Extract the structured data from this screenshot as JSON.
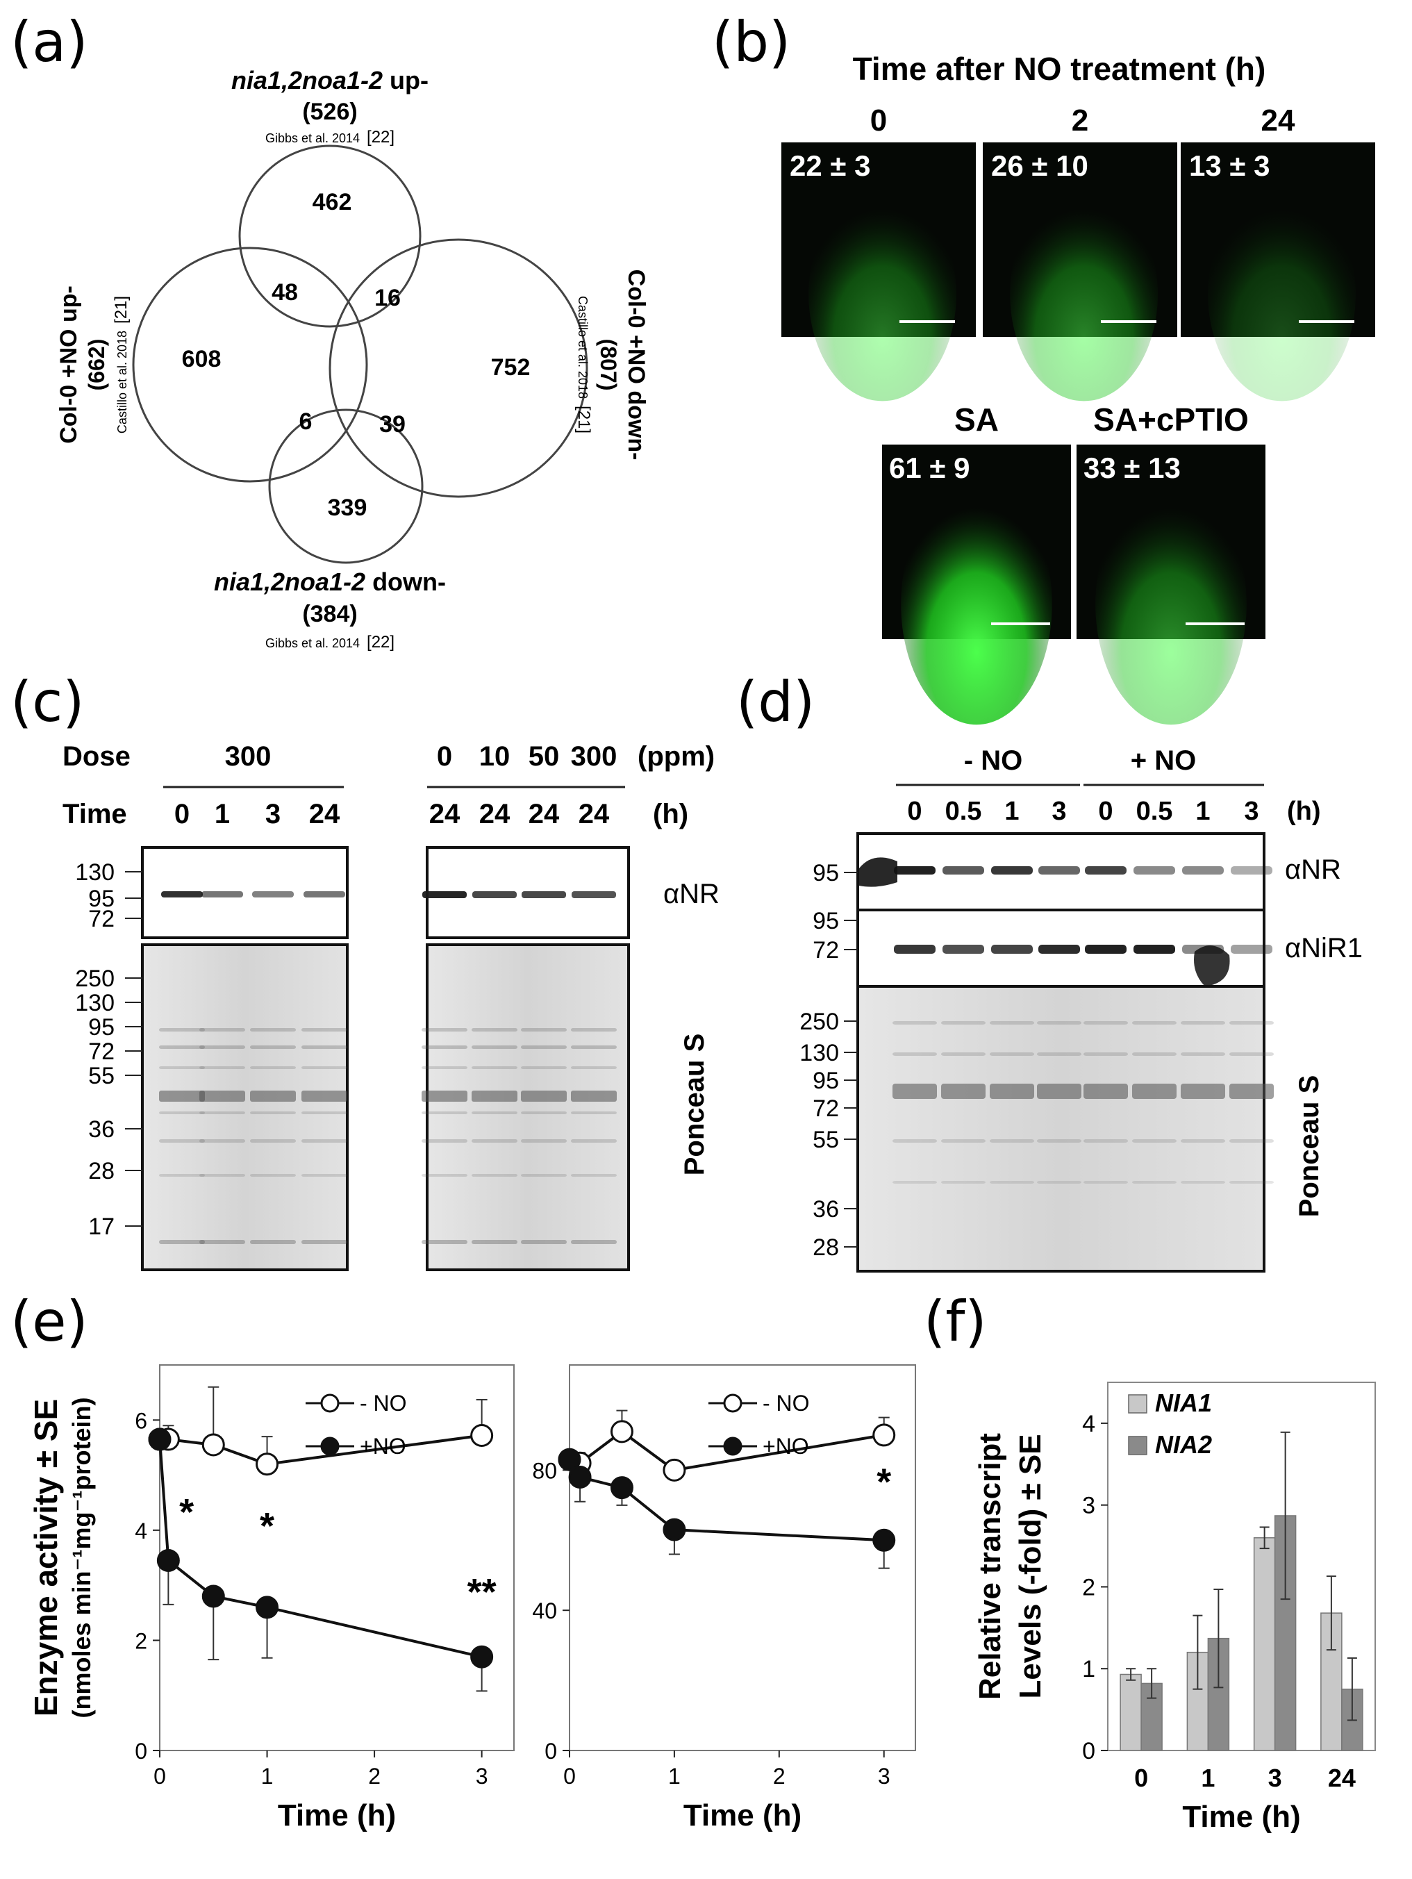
{
  "panels": {
    "a": {
      "letter": "(a)",
      "sets": [
        {
          "name_italic": "nia1,2noa1-2",
          "name_suffix": " up-",
          "count": "(526)",
          "citation": "Gibbs et al. 2014",
          "ref": "[22]"
        },
        {
          "name_italic": "nia1,2noa1-2",
          "name_suffix": " down-",
          "count": "(384)",
          "citation": "Gibbs et al. 2014",
          "ref": "[22]"
        },
        {
          "name": "Col-0 +NO up-",
          "count": "(662)",
          "citation": "Castillo et al. 2018",
          "ref": "[21]"
        },
        {
          "name": "Col-0 +NO down-",
          "count": "(807)",
          "citation": "Castillo et al. 2018",
          "ref": "[21]"
        }
      ],
      "region_values": {
        "top_only": "462",
        "left_only": "608",
        "right_only": "752",
        "bottom_only": "339",
        "top_left": "48",
        "top_right": "16",
        "left_bottom": "6",
        "right_bottom": "39"
      }
    },
    "b": {
      "letter": "(b)",
      "title": "Time after NO treatment (h)",
      "top_images": [
        {
          "label": "0",
          "value": "22 ± 3",
          "intensity": 0.45
        },
        {
          "label": "2",
          "value": "26 ± 10",
          "intensity": 0.5
        },
        {
          "label": "24",
          "value": "13 ± 3",
          "intensity": 0.28
        }
      ],
      "bottom_images": [
        {
          "label": "SA",
          "value": "61 ± 9",
          "intensity": 1.0
        },
        {
          "label": "SA+cPTIO",
          "value": "33 ± 13",
          "intensity": 0.55
        }
      ]
    },
    "c": {
      "letter": "(c)",
      "dose_label": "Dose",
      "time_label": "Time",
      "left_dose": "300",
      "left_times": [
        "0",
        "1",
        "3",
        "24"
      ],
      "right_doses": [
        "0",
        "10",
        "50",
        "300"
      ],
      "dose_unit": "(ppm)",
      "right_times": [
        "24",
        "24",
        "24",
        "24"
      ],
      "time_unit": "(h)",
      "nr_markers": [
        "130",
        "95",
        "72"
      ],
      "ponceau_markers": [
        "250",
        "130",
        "95",
        "72",
        "55",
        "36",
        "28",
        "17"
      ],
      "nr_label": "αNR",
      "ponceau_label": "Ponceau S"
    },
    "d": {
      "letter": "(d)",
      "groups": [
        "- NO",
        "+ NO"
      ],
      "times": [
        "0",
        "0.5",
        "1",
        "3",
        "0",
        "0.5",
        "1",
        "3"
      ],
      "time_unit": "(h)",
      "nr_markers": [
        "95"
      ],
      "nir_markers": [
        "95",
        "72"
      ],
      "ponceau_markers": [
        "250",
        "130",
        "95",
        "72",
        "55",
        "36",
        "28"
      ],
      "nr_label": "αNR",
      "nir_label": "αNiR1",
      "ponceau_label": "Ponceau S"
    },
    "e": {
      "letter": "(e)"
    },
    "f": {
      "letter": "(f)"
    }
  },
  "chart_data": [
    {
      "type": "line",
      "panel": "e-left",
      "xlabel": "Time (h)",
      "ylabel": "Enzyme activity ± SE",
      "ylabel2": "(nmoles min⁻¹mg⁻¹protein)",
      "xlim": [
        0,
        3.3
      ],
      "ylim": [
        0,
        7
      ],
      "xticks": [
        0,
        1,
        2,
        3
      ],
      "yticks": [
        0,
        2,
        4,
        6
      ],
      "series": [
        {
          "name": "- NO",
          "marker": "open",
          "x": [
            0,
            0.08,
            0.5,
            1,
            3
          ],
          "y": [
            5.65,
            5.65,
            5.55,
            5.2,
            5.72
          ],
          "err": [
            0.12,
            0.25,
            1.05,
            0.5,
            0.65
          ]
        },
        {
          "name": "+NO",
          "marker": "filled",
          "x": [
            0,
            0.08,
            0.5,
            1,
            3
          ],
          "y": [
            5.65,
            3.45,
            2.8,
            2.6,
            1.7
          ],
          "err": [
            0.1,
            0.8,
            1.15,
            0.92,
            0.62
          ]
        }
      ],
      "annotations": [
        {
          "text": "*",
          "x": 0.25,
          "y": 4.1
        },
        {
          "text": "*",
          "x": 1.0,
          "y": 3.85
        },
        {
          "text": "**",
          "x": 3.0,
          "y": 2.65
        }
      ]
    },
    {
      "type": "line",
      "panel": "e-right",
      "xlabel": "Time (h)",
      "xlim": [
        0,
        3.3
      ],
      "ylim": [
        0,
        110
      ],
      "xticks": [
        0,
        1,
        2,
        3
      ],
      "yticks": [
        0,
        40,
        80
      ],
      "series": [
        {
          "name": "- NO",
          "marker": "open",
          "x": [
            0,
            0.1,
            0.5,
            1,
            3
          ],
          "y": [
            83,
            82,
            91,
            80,
            90
          ],
          "err": [
            2,
            3,
            6,
            2,
            5
          ]
        },
        {
          "name": "+NO",
          "marker": "filled",
          "x": [
            0,
            0.1,
            0.5,
            1,
            3
          ],
          "y": [
            83,
            78,
            75,
            63,
            60
          ],
          "err": [
            2,
            7,
            5,
            7,
            8
          ]
        }
      ],
      "annotations": [
        {
          "text": "*",
          "x": 3.0,
          "y": 73
        }
      ]
    },
    {
      "type": "bar",
      "panel": "f",
      "xlabel": "Time (h)",
      "ylabel": "Relative transcript",
      "ylabel2": "Levels (-fold) ± SE",
      "categories": [
        "0",
        "1",
        "3",
        "24"
      ],
      "ylim": [
        0,
        4.5
      ],
      "yticks": [
        0,
        1,
        2,
        3,
        4
      ],
      "series": [
        {
          "name": "NIA1",
          "color": "#c8c8c8",
          "values": [
            0.93,
            1.2,
            2.6,
            1.68
          ],
          "err": [
            0.07,
            0.45,
            0.13,
            0.45
          ]
        },
        {
          "name": "NIA2",
          "color": "#8a8a8a",
          "values": [
            0.82,
            1.37,
            2.87,
            0.75
          ],
          "err": [
            0.18,
            0.6,
            1.02,
            0.38
          ]
        }
      ]
    }
  ]
}
